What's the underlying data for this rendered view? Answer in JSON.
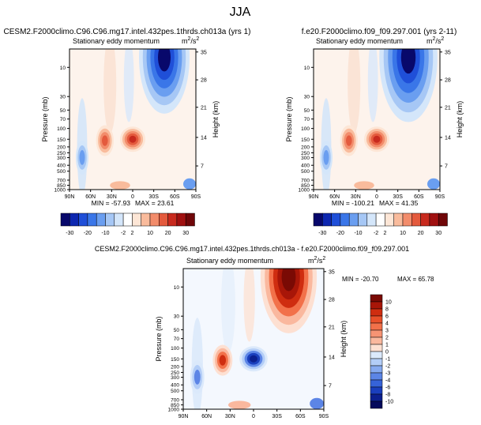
{
  "page_title": "JJA",
  "chart_data": [
    {
      "type": "heatmap",
      "id": "panel-a",
      "title": "CESM2.F2000climo.C96.C96.mg17.intel.432pes.1thrds.ch013a (yrs 1)",
      "subtitle": "Stationary eddy momentum",
      "units": "m²/s²",
      "units_base": "m",
      "units_sup1": "2",
      "units_mid": "/s",
      "units_sup2": "2",
      "xlabel": "",
      "ylabel": "Pressure (mb)",
      "ylabel_right": "Height (km)",
      "x_ticks": [
        "90N",
        "60N",
        "30N",
        "0",
        "30S",
        "60S",
        "90S"
      ],
      "y_ticks": [
        "10",
        "30",
        "50",
        "70",
        "100",
        "150",
        "200",
        "250",
        "300",
        "400",
        "500",
        "700",
        "850",
        "1000"
      ],
      "y_ticks_right": [
        "35",
        "28",
        "21",
        "14",
        "7"
      ],
      "min_label": "MIN = -57.93",
      "max_label": "MAX = 23.61",
      "min": -57.93,
      "max": 23.61,
      "colorbar": {
        "orientation": "horizontal",
        "labels": [
          "-30",
          "-20",
          "-10",
          "-2",
          "2",
          "10",
          "20",
          "30"
        ],
        "levels": [
          -30,
          -20,
          -10,
          -2,
          2,
          10,
          20,
          30
        ],
        "colors": [
          "#08086b",
          "#0d27b0",
          "#1f4fd8",
          "#3a76e8",
          "#6a9ef0",
          "#a6c7f5",
          "#d4e6fa",
          "#ffffff",
          "#fde6d6",
          "#f9bb9c",
          "#f28c6b",
          "#e45a3d",
          "#c82a1e",
          "#a01010",
          "#6f0608"
        ]
      },
      "features": [
        {
          "kind": "negative",
          "location": "upper stratosphere 20S-70S",
          "value": -57.93
        },
        {
          "kind": "positive",
          "location": "150 mb near equator",
          "value": 23.61
        },
        {
          "kind": "positive",
          "location": "150 mb 30N",
          "value": 14
        },
        {
          "kind": "negative",
          "location": "200 mb 60N",
          "value": -7
        }
      ]
    },
    {
      "type": "heatmap",
      "id": "panel-b",
      "title": "f.e20.F2000climo.f09_f09.297.001 (yrs 2-11)",
      "subtitle": "Stationary eddy momentum",
      "units": "m²/s²",
      "units_base": "m",
      "units_sup1": "2",
      "units_mid": "/s",
      "units_sup2": "2",
      "xlabel": "",
      "ylabel": "Pressure (mb)",
      "ylabel_right": "Height (km)",
      "x_ticks": [
        "90N",
        "60N",
        "30N",
        "0",
        "30S",
        "60S",
        "90S"
      ],
      "y_ticks": [
        "10",
        "30",
        "50",
        "70",
        "100",
        "150",
        "200",
        "250",
        "300",
        "400",
        "500",
        "700",
        "850",
        "1000"
      ],
      "y_ticks_right": [
        "35",
        "28",
        "21",
        "14",
        "7"
      ],
      "min_label": "MIN = -100.21",
      "max_label": "MAX = 41.35",
      "min": -100.21,
      "max": 41.35,
      "colorbar": {
        "orientation": "horizontal",
        "labels": [
          "-30",
          "-20",
          "-10",
          "-2",
          "2",
          "10",
          "20",
          "30"
        ],
        "levels": [
          -30,
          -20,
          -10,
          -2,
          2,
          10,
          20,
          30
        ],
        "colors": [
          "#08086b",
          "#0d27b0",
          "#1f4fd8",
          "#3a76e8",
          "#6a9ef0",
          "#a6c7f5",
          "#d4e6fa",
          "#ffffff",
          "#fde6d6",
          "#f9bb9c",
          "#f28c6b",
          "#e45a3d",
          "#c82a1e",
          "#a01010",
          "#6f0608"
        ]
      },
      "features": [
        {
          "kind": "negative",
          "location": "upper stratosphere 20S-70S",
          "value": -100.21
        },
        {
          "kind": "positive",
          "location": "150 mb near equator",
          "value": 41.35
        },
        {
          "kind": "positive",
          "location": "150 mb 30N",
          "value": 16
        },
        {
          "kind": "negative",
          "location": "200 mb 60N",
          "value": -8
        }
      ]
    },
    {
      "type": "heatmap",
      "id": "panel-diff",
      "title": "CESM2.F2000climo.C96.C96.mg17.intel.432pes.1thrds.ch013a - f.e20.F2000climo.f09_f09.297.001",
      "subtitle": "Stationary eddy momentum",
      "units": "m²/s²",
      "units_base": "m",
      "units_sup1": "2",
      "units_mid": "/s",
      "units_sup2": "2",
      "xlabel": "",
      "ylabel": "Pressure (mb)",
      "ylabel_right": "Height (km)",
      "x_ticks": [
        "90N",
        "60N",
        "30N",
        "0",
        "30S",
        "60S",
        "90S"
      ],
      "y_ticks": [
        "10",
        "30",
        "50",
        "70",
        "100",
        "150",
        "200",
        "250",
        "300",
        "400",
        "500",
        "700",
        "850",
        "1000"
      ],
      "y_ticks_right": [
        "35",
        "28",
        "21",
        "14",
        "7"
      ],
      "min_label": "MIN = -20.70",
      "max_label": "MAX = 65.78",
      "min": -20.7,
      "max": 65.78,
      "colorbar": {
        "orientation": "vertical",
        "labels": [
          "10",
          "8",
          "6",
          "4",
          "3",
          "2",
          "1",
          "0",
          "-1",
          "-2",
          "-3",
          "-4",
          "-6",
          "-8",
          "-10"
        ],
        "levels": [
          10,
          8,
          6,
          4,
          3,
          2,
          1,
          0,
          -1,
          -2,
          -3,
          -4,
          -6,
          -8,
          -10
        ],
        "colors": [
          "#7a0a04",
          "#a81608",
          "#cf2d10",
          "#e8502a",
          "#f2714a",
          "#f79474",
          "#fab89e",
          "#fde0d2",
          "#dbe9fb",
          "#b3cdf7",
          "#86aaf0",
          "#5c85e6",
          "#3663d8",
          "#1a3fbd",
          "#0c208f",
          "#050a5c"
        ]
      },
      "features": [
        {
          "kind": "positive",
          "location": "upper stratosphere 20S-70S",
          "value": 65.78
        },
        {
          "kind": "negative",
          "location": "150 mb near equator",
          "value": -20.7
        },
        {
          "kind": "positive",
          "location": "150 mb 30N",
          "value": 6
        },
        {
          "kind": "negative",
          "location": "250 mb 60N",
          "value": -6
        }
      ]
    }
  ]
}
